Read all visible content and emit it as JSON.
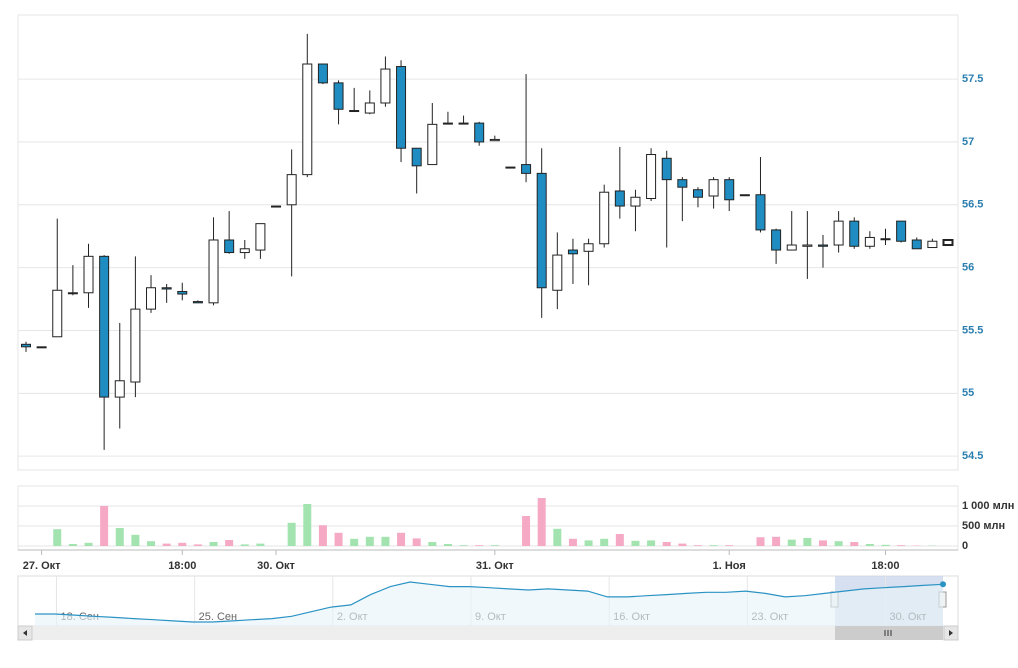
{
  "chart_data": {
    "type": "candlestick",
    "categories": [
      null,
      "27. Окт",
      null,
      null,
      null,
      null,
      null,
      null,
      null,
      null,
      "18:00",
      null,
      null,
      null,
      null,
      null,
      "30. Окт",
      null,
      null,
      null,
      null,
      null,
      null,
      null,
      null,
      null,
      null,
      null,
      null,
      null,
      "31. Окт",
      null,
      null,
      null,
      null,
      null,
      null,
      null,
      null,
      null,
      null,
      null,
      null,
      null,
      null,
      "1. Ноя",
      null,
      null,
      null,
      null,
      null,
      null,
      null,
      null,
      null,
      "18:00",
      null,
      null,
      null,
      null
    ],
    "open": [
      55.39,
      55.37,
      55.45,
      55.8,
      55.8,
      56.09,
      54.97,
      55.09,
      55.67,
      55.84,
      55.81,
      55.73,
      55.72,
      56.22,
      56.12,
      56.14,
      56.49,
      56.5,
      56.74,
      57.62,
      57.47,
      57.25,
      57.23,
      57.31,
      57.6,
      56.95,
      56.82,
      57.15,
      57.15,
      57.15,
      57.01,
      56.8,
      56.82,
      56.75,
      55.82,
      56.14,
      56.13,
      56.19,
      56.61,
      56.49,
      56.55,
      56.87,
      56.7,
      56.62,
      56.57,
      56.7,
      56.58,
      56.58,
      56.3,
      56.14,
      56.17,
      56.18,
      56.18,
      56.37,
      56.17,
      56.23,
      56.37,
      56.22,
      56.16,
      56.18
    ],
    "high": [
      55.41,
      55.37,
      56.39,
      56.02,
      56.19,
      56.1,
      55.56,
      56.09,
      55.94,
      55.87,
      55.88,
      55.74,
      56.4,
      56.45,
      56.22,
      56.35,
      56.49,
      56.94,
      57.86,
      57.62,
      57.49,
      57.43,
      57.41,
      57.68,
      57.65,
      56.95,
      57.31,
      57.24,
      57.21,
      57.16,
      57.05,
      56.8,
      57.54,
      56.95,
      56.28,
      56.23,
      56.23,
      56.66,
      56.96,
      56.62,
      56.95,
      56.93,
      56.72,
      56.64,
      56.72,
      56.72,
      56.58,
      56.88,
      56.31,
      56.45,
      56.45,
      56.26,
      56.45,
      56.4,
      56.29,
      56.31,
      56.37,
      56.24,
      56.23,
      56.22
    ],
    "low": [
      55.33,
      55.37,
      55.45,
      55.78,
      55.68,
      54.55,
      54.72,
      54.97,
      55.64,
      55.72,
      55.74,
      55.72,
      55.7,
      56.11,
      56.07,
      56.07,
      56.49,
      55.93,
      56.72,
      57.46,
      57.14,
      57.25,
      57.22,
      57.28,
      56.84,
      56.59,
      56.82,
      57.15,
      57.15,
      56.97,
      57.01,
      56.8,
      56.68,
      55.6,
      55.67,
      55.87,
      55.86,
      56.16,
      56.39,
      56.29,
      56.53,
      56.16,
      56.37,
      56.48,
      56.47,
      56.45,
      56.58,
      56.28,
      56.03,
      56.14,
      55.91,
      56.0,
      56.12,
      56.15,
      56.15,
      56.18,
      56.2,
      56.15,
      56.16,
      56.18
    ],
    "close": [
      55.37,
      55.37,
      55.82,
      55.8,
      56.09,
      54.97,
      55.1,
      55.67,
      55.84,
      55.83,
      55.79,
      55.72,
      56.22,
      56.12,
      56.15,
      56.35,
      56.49,
      56.74,
      57.62,
      57.47,
      57.26,
      57.25,
      57.31,
      57.58,
      56.95,
      56.81,
      57.14,
      57.15,
      57.15,
      57.0,
      57.02,
      56.8,
      56.75,
      55.84,
      56.1,
      56.11,
      56.19,
      56.6,
      56.49,
      56.56,
      56.9,
      56.7,
      56.64,
      56.56,
      56.7,
      56.54,
      56.58,
      56.3,
      56.14,
      56.18,
      56.18,
      56.17,
      56.37,
      56.17,
      56.24,
      56.23,
      56.21,
      56.15,
      56.21,
      56.22
    ],
    "volume": [
      0,
      0,
      420,
      50,
      80,
      1000,
      450,
      280,
      120,
      60,
      80,
      40,
      100,
      150,
      40,
      60,
      0,
      580,
      1050,
      520,
      330,
      180,
      230,
      230,
      330,
      190,
      100,
      50,
      20,
      20,
      20,
      0,
      750,
      1200,
      430,
      180,
      140,
      180,
      300,
      130,
      140,
      100,
      60,
      20,
      20,
      20,
      0,
      220,
      230,
      160,
      200,
      140,
      120,
      100,
      50,
      30,
      20,
      10,
      10,
      0
    ],
    "ylim": [
      54.39,
      58.01
    ],
    "yticks": [
      54.5,
      55,
      55.5,
      56,
      56.5,
      57,
      57.5
    ],
    "volume_ylim": [
      -100,
      1500
    ],
    "volume_ticks": [
      {
        "value": 1000,
        "label": "1 000 млн"
      },
      {
        "value": 500,
        "label": "500 млн"
      },
      0
    ],
    "up_color": "#ffffff",
    "down_color": "#1f8dc2",
    "volume_up_color": "#a3e3b0",
    "volume_down_color": "#f5a9c4",
    "grid": true,
    "navigator": {
      "categories": [
        null,
        null,
        "18. Сен",
        null,
        null,
        null,
        null,
        null,
        null,
        "25. Сен",
        null,
        null,
        null,
        null,
        null,
        null,
        "2. Окт",
        null,
        null,
        null,
        null,
        null,
        null,
        "9. Окт",
        null,
        null,
        null,
        null,
        null,
        null,
        "16. Окт",
        null,
        null,
        null,
        null,
        null,
        null,
        "23. Окт",
        null,
        null,
        null,
        null,
        null,
        null,
        "30. Окт",
        null,
        null
      ],
      "values": [
        53.5,
        53.5,
        53.4,
        53.3,
        53.2,
        53.1,
        53.0,
        52.9,
        52.8,
        52.8,
        52.9,
        53.0,
        53.1,
        53.3,
        53.7,
        54.1,
        54.3,
        55.2,
        55.9,
        56.3,
        56.1,
        55.9,
        55.9,
        55.8,
        55.7,
        55.6,
        55.7,
        55.6,
        55.5,
        55.0,
        55.0,
        55.1,
        55.2,
        55.3,
        55.4,
        55.4,
        55.5,
        55.3,
        55.0,
        55.1,
        55.3,
        55.5,
        55.7,
        55.8,
        55.9,
        56.0,
        56.1
      ],
      "color": "#2b93c4"
    }
  }
}
